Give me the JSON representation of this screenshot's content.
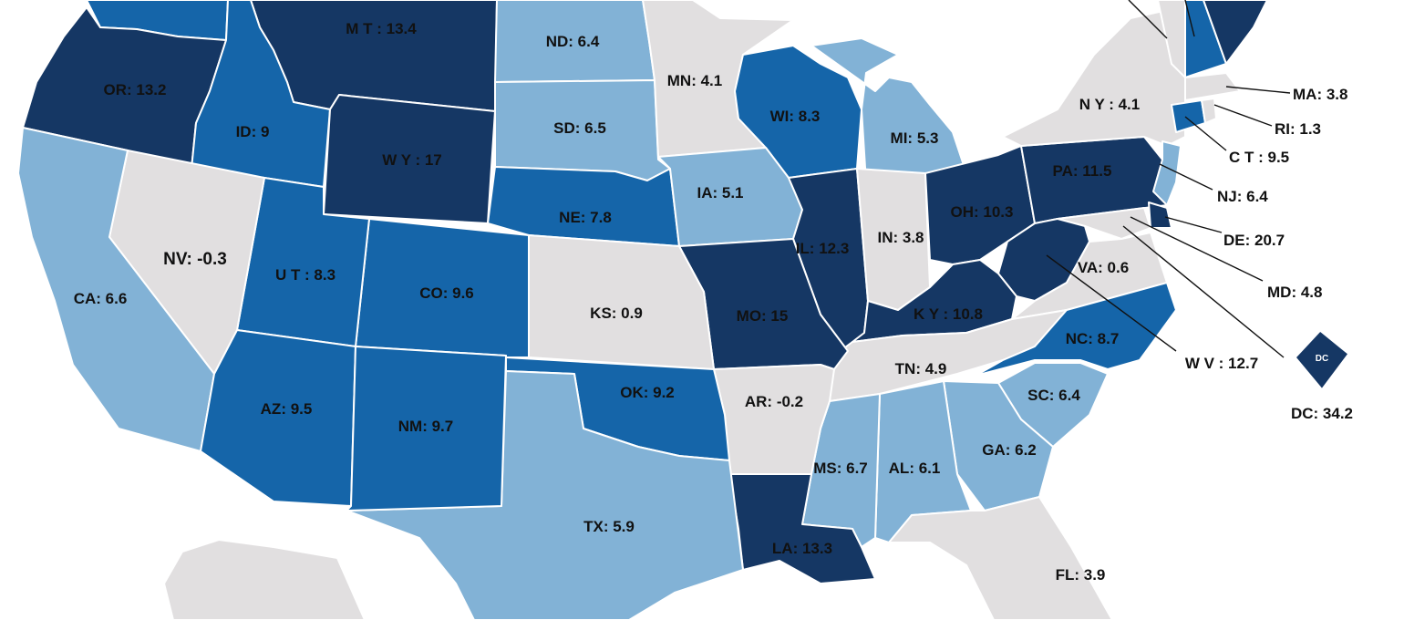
{
  "legend_colors": {
    "lightest": "#e1dfe0",
    "light": "#82b2d6",
    "medium": "#1565a9",
    "dark": "#153764"
  },
  "states": {
    "WA": {
      "label": "",
      "color": "#1565a9"
    },
    "MT": {
      "label": "M T : 13.4",
      "color": "#153764"
    },
    "ND": {
      "label": "ND: 6.4",
      "color": "#82b2d6"
    },
    "MN": {
      "label": "MN: 4.1",
      "color": "#e1dfe0"
    },
    "OR": {
      "label": "OR: 13.2",
      "color": "#153764"
    },
    "ID": {
      "label": "ID: 9",
      "color": "#1565a9"
    },
    "WY": {
      "label": "W Y : 17",
      "color": "#153764"
    },
    "SD": {
      "label": "SD: 6.5",
      "color": "#82b2d6"
    },
    "WI": {
      "label": "WI: 8.3",
      "color": "#1565a9"
    },
    "MI": {
      "label": "MI: 5.3",
      "color": "#82b2d6"
    },
    "NY": {
      "label": "N Y : 4.1",
      "color": "#e1dfe0"
    },
    "VT": {
      "label": "",
      "color": "#e1dfe0"
    },
    "NH": {
      "label": "",
      "color": "#1565a9"
    },
    "ME": {
      "label": "",
      "color": "#153764"
    },
    "MA": {
      "label": "MA: 3.8",
      "color": "#e1dfe0"
    },
    "RI": {
      "label": "RI: 1.3",
      "color": "#e1dfe0"
    },
    "CT": {
      "label": "C T : 9.5",
      "color": "#1565a9"
    },
    "NJ": {
      "label": "NJ: 6.4",
      "color": "#82b2d6"
    },
    "DE": {
      "label": "DE: 20.7",
      "color": "#153764"
    },
    "MD": {
      "label": "MD: 4.8",
      "color": "#e1dfe0"
    },
    "CA": {
      "label": "CA: 6.6",
      "color": "#82b2d6"
    },
    "NV": {
      "label": "NV: -0.3",
      "color": "#e1dfe0"
    },
    "UT": {
      "label": "U T : 8.3",
      "color": "#1565a9"
    },
    "CO": {
      "label": "CO: 9.6",
      "color": "#1565a9"
    },
    "NE": {
      "label": "NE: 7.8",
      "color": "#1565a9"
    },
    "IA": {
      "label": "IA: 5.1",
      "color": "#82b2d6"
    },
    "IL": {
      "label": "IL: 12.3",
      "color": "#153764"
    },
    "IN": {
      "label": "IN: 3.8",
      "color": "#e1dfe0"
    },
    "OH": {
      "label": "OH: 10.3",
      "color": "#153764"
    },
    "PA": {
      "label": "PA: 11.5",
      "color": "#153764"
    },
    "KS": {
      "label": "KS: 0.9",
      "color": "#e1dfe0"
    },
    "MO": {
      "label": "MO: 15",
      "color": "#153764"
    },
    "KY": {
      "label": "K Y : 10.8",
      "color": "#153764"
    },
    "WV": {
      "label": "W V : 12.7",
      "color": "#153764"
    },
    "VA": {
      "label": "VA: 0.6",
      "color": "#e1dfe0"
    },
    "AZ": {
      "label": "AZ: 9.5",
      "color": "#1565a9"
    },
    "NM": {
      "label": "NM: 9.7",
      "color": "#1565a9"
    },
    "OK": {
      "label": "OK: 9.2",
      "color": "#1565a9"
    },
    "AR": {
      "label": "AR: -0.2",
      "color": "#e1dfe0"
    },
    "TN": {
      "label": "TN: 4.9",
      "color": "#e1dfe0"
    },
    "NC": {
      "label": "NC: 8.7",
      "color": "#1565a9"
    },
    "SC": {
      "label": "SC: 6.4",
      "color": "#82b2d6"
    },
    "TX": {
      "label": "TX: 5.9",
      "color": "#82b2d6"
    },
    "LA": {
      "label": "LA: 13.3",
      "color": "#153764"
    },
    "MS": {
      "label": "MS: 6.7",
      "color": "#82b2d6"
    },
    "AL": {
      "label": "AL: 6.1",
      "color": "#82b2d6"
    },
    "GA": {
      "label": "GA: 6.2",
      "color": "#82b2d6"
    },
    "FL": {
      "label": "FL: 3.9",
      "color": "#e1dfe0"
    },
    "AK": {
      "label": "",
      "color": "#e1dfe0"
    },
    "DC": {
      "label": "DC: 34.2",
      "color": "#153764",
      "icon_text": "DC"
    }
  }
}
